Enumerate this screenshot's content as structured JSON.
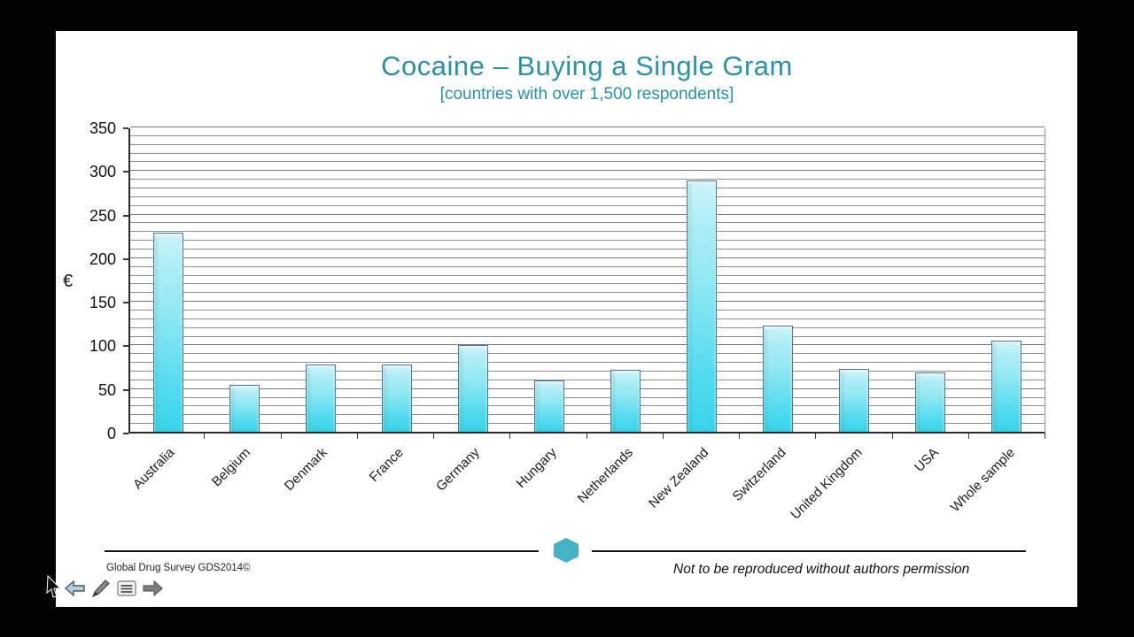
{
  "page": {
    "background_color": "#000000",
    "slide_background_color": "#ffffff"
  },
  "chart_data": {
    "type": "bar",
    "title": "Cocaine – Buying a Single Gram",
    "subtitle": "[countries with over 1,500 respondents]",
    "xlabel": "",
    "ylabel": "€",
    "ylim": [
      0,
      350
    ],
    "y_major_step": 50,
    "y_minor_step": 10,
    "grid": true,
    "legend": "none",
    "title_color": "#2793a9",
    "bar_color_top": "#cdf4fa",
    "bar_color_bottom": "#36d4ec",
    "categories": [
      "Australia",
      "Belgium",
      "Denmark",
      "France",
      "Germany",
      "Hungary",
      "Netherlands",
      "New Zealand",
      "Switzerland",
      "United Kingdom",
      "USA",
      "Whole sample"
    ],
    "values": [
      230,
      54,
      78,
      78,
      100,
      59,
      71,
      290,
      122,
      72,
      68,
      105
    ]
  },
  "footer": {
    "credit_text": "Global Drug Survey GDS2014©",
    "notice_text": "Not to be reproduced without authors permission",
    "hexagon_color": "#44b3c4"
  },
  "nav": {
    "previous_label": "previous slide",
    "pen_label": "pen tool",
    "menu_label": "slide menu",
    "next_label": "next slide"
  }
}
